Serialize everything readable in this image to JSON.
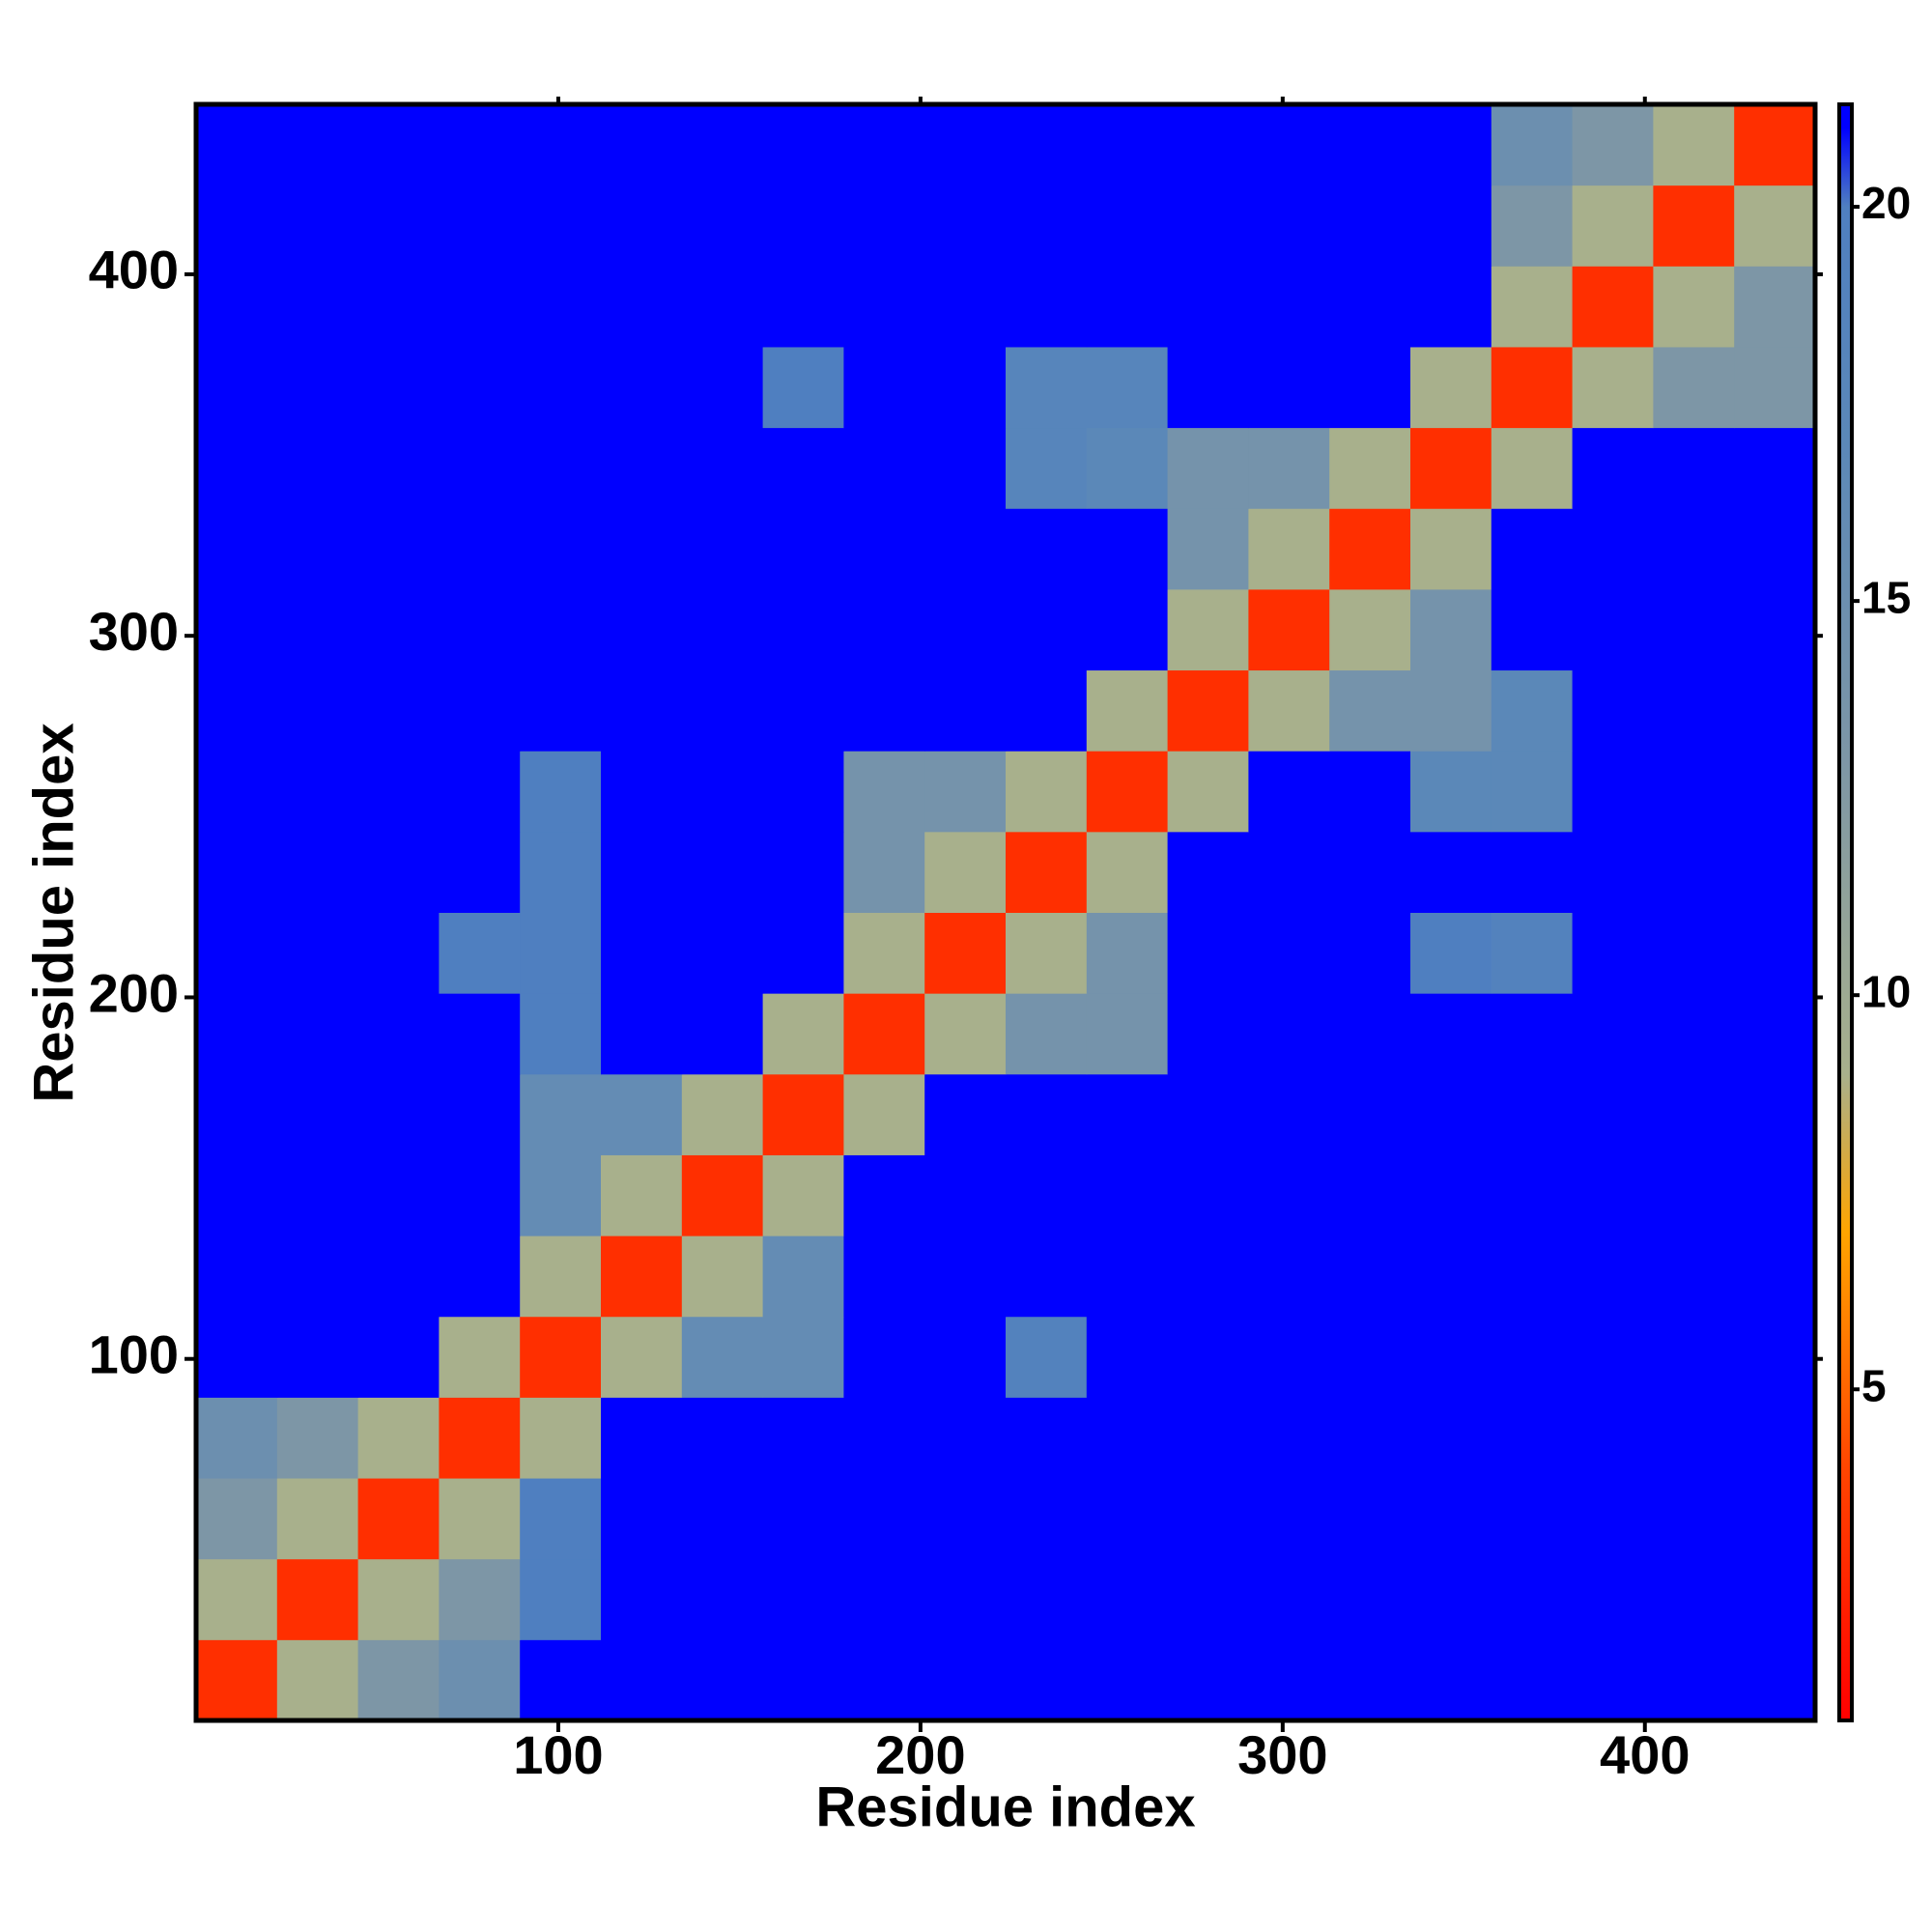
{
  "chart_data": {
    "type": "heatmap",
    "x_label": "Residue index",
    "y_label": "Residue index",
    "xlim": [
      0,
      447
    ],
    "ylim": [
      0,
      447
    ],
    "xticks": [
      100,
      200,
      300,
      400
    ],
    "yticks": [
      100,
      200,
      300,
      400
    ],
    "xbins": [
      0,
      22.35,
      44.7,
      67.05,
      89.4,
      111.75,
      134.1,
      156.45,
      178.8,
      201.15,
      223.5,
      245.85,
      268.2,
      290.55,
      312.9,
      335.25,
      357.6,
      379.95,
      402.3,
      424.65,
      447
    ],
    "ybins": [
      0,
      22.35,
      44.7,
      67.05,
      89.4,
      111.75,
      134.1,
      156.45,
      178.8,
      201.15,
      223.5,
      245.85,
      268.2,
      290.55,
      312.9,
      335.25,
      357.6,
      379.95,
      402.3,
      424.65,
      447
    ],
    "z": [
      [
        3,
        9,
        13,
        15,
        21,
        21,
        21,
        21,
        21,
        21,
        21,
        21,
        21,
        21,
        21,
        21,
        21,
        21,
        21,
        21
      ],
      [
        9,
        3,
        9,
        13,
        20,
        21,
        21,
        21,
        21,
        21,
        21,
        21,
        21,
        21,
        21,
        21,
        21,
        21,
        21,
        21
      ],
      [
        13,
        9,
        3,
        9,
        20,
        21,
        21,
        21,
        21,
        21,
        21,
        21,
        21,
        21,
        21,
        21,
        21,
        21,
        21,
        21
      ],
      [
        15,
        13,
        9,
        3,
        9,
        21,
        21,
        21,
        21,
        21,
        21,
        21,
        21,
        21,
        21,
        21,
        21,
        21,
        21,
        21
      ],
      [
        21,
        21,
        21,
        9,
        3,
        9,
        16,
        16,
        21,
        21,
        19,
        21,
        21,
        21,
        21,
        21,
        21,
        21,
        21,
        21
      ],
      [
        21,
        21,
        21,
        21,
        9,
        3,
        9,
        16,
        21,
        21,
        21,
        21,
        21,
        21,
        21,
        21,
        21,
        21,
        21,
        21
      ],
      [
        21,
        21,
        21,
        21,
        16,
        9,
        3,
        9,
        21,
        21,
        21,
        21,
        21,
        21,
        21,
        21,
        21,
        21,
        21,
        21
      ],
      [
        21,
        21,
        21,
        21,
        16,
        16,
        9,
        3,
        9,
        21,
        21,
        21,
        21,
        21,
        21,
        21,
        21,
        21,
        21,
        21
      ],
      [
        21,
        21,
        21,
        21,
        20,
        21,
        21,
        9,
        3,
        9,
        14,
        14,
        21,
        21,
        21,
        21,
        21,
        21,
        21,
        21
      ],
      [
        21,
        21,
        21,
        20,
        20,
        21,
        21,
        21,
        9,
        3,
        9,
        14,
        21,
        21,
        21,
        20,
        19,
        21,
        21,
        21
      ],
      [
        21,
        21,
        21,
        21,
        20,
        21,
        21,
        21,
        14,
        9,
        3,
        9,
        21,
        21,
        21,
        21,
        21,
        21,
        21,
        21
      ],
      [
        21,
        21,
        21,
        21,
        20,
        21,
        21,
        21,
        14,
        14,
        9,
        3,
        9,
        21,
        21,
        17,
        17,
        21,
        21,
        21
      ],
      [
        21,
        21,
        21,
        21,
        21,
        21,
        21,
        21,
        21,
        21,
        21,
        9,
        3,
        9,
        14,
        14,
        17,
        21,
        21,
        21
      ],
      [
        21,
        21,
        21,
        21,
        21,
        21,
        21,
        21,
        21,
        21,
        21,
        21,
        9,
        3,
        9,
        14,
        21,
        21,
        21,
        21
      ],
      [
        21,
        21,
        21,
        21,
        21,
        21,
        21,
        21,
        21,
        21,
        21,
        21,
        14,
        9,
        3,
        9,
        21,
        21,
        21,
        21
      ],
      [
        21,
        21,
        21,
        21,
        21,
        21,
        21,
        21,
        21,
        21,
        18,
        17,
        14,
        14,
        9,
        3,
        9,
        21,
        21,
        21
      ],
      [
        21,
        21,
        21,
        21,
        21,
        21,
        21,
        20,
        21,
        21,
        18,
        18,
        21,
        21,
        21,
        9,
        3,
        9,
        13,
        13
      ],
      [
        21,
        21,
        21,
        21,
        21,
        21,
        21,
        21,
        21,
        21,
        21,
        21,
        21,
        21,
        21,
        21,
        9,
        3,
        9,
        13
      ],
      [
        21,
        21,
        21,
        21,
        21,
        21,
        21,
        21,
        21,
        21,
        21,
        21,
        21,
        21,
        21,
        21,
        13,
        9,
        3,
        9
      ],
      [
        21,
        21,
        21,
        21,
        21,
        21,
        21,
        21,
        21,
        21,
        21,
        21,
        21,
        21,
        21,
        21,
        15,
        13,
        9,
        3
      ]
    ],
    "zlim": [
      0.8,
      21.3
    ],
    "zticks": [
      5,
      10,
      15,
      20
    ],
    "colorscale": [
      [
        0.8,
        "#ff0000"
      ],
      [
        4,
        "#ff4500"
      ],
      [
        7,
        "#ffa500"
      ],
      [
        9,
        "#a8b08c"
      ],
      [
        13,
        "#7d96a6"
      ],
      [
        17,
        "#5b88b8"
      ],
      [
        20,
        "#4f7fc0"
      ],
      [
        21,
        "#0000ff"
      ]
    ]
  }
}
